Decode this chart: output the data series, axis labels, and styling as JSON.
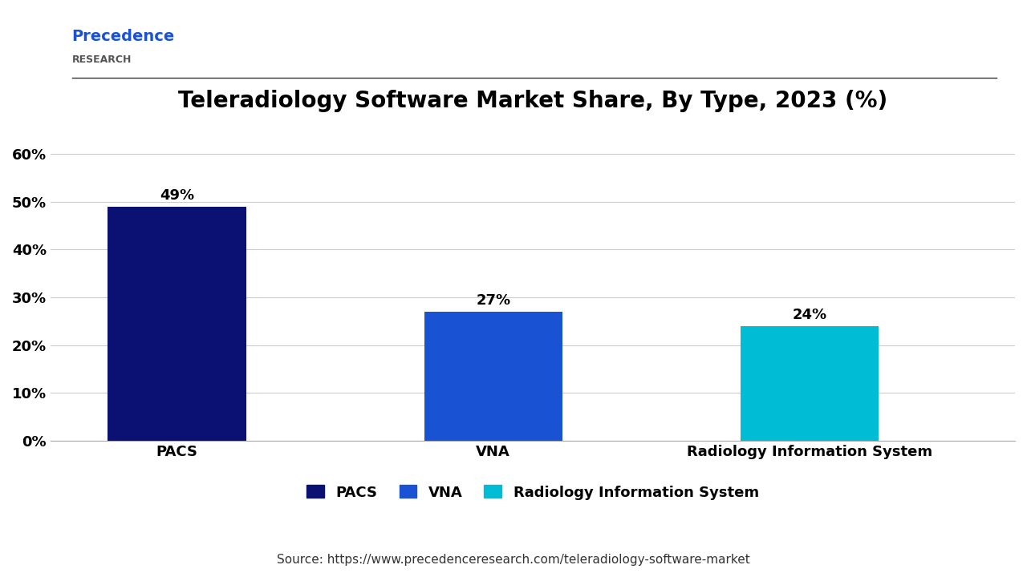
{
  "title": "Teleradiology Software Market Share, By Type, 2023 (%)",
  "categories": [
    "PACS",
    "VNA",
    "Radiology Information System"
  ],
  "values": [
    49,
    27,
    24
  ],
  "bar_colors": [
    "#0a1172",
    "#1a52d4",
    "#00bcd4"
  ],
  "labels": [
    "49%",
    "27%",
    "24%"
  ],
  "ylim": [
    0,
    65
  ],
  "yticks": [
    0,
    10,
    20,
    30,
    40,
    50,
    60
  ],
  "ytick_labels": [
    "0%",
    "10%",
    "20%",
    "30%",
    "40%",
    "50%",
    "60%"
  ],
  "legend_labels": [
    "PACS",
    "VNA",
    "Radiology Information System"
  ],
  "source_text": "Source: https://www.precedenceresearch.com/teleradiology-software-market",
  "background_color": "#ffffff",
  "title_fontsize": 20,
  "tick_fontsize": 13,
  "label_fontsize": 13,
  "legend_fontsize": 13,
  "source_fontsize": 11,
  "bar_width": 0.875,
  "grid_color": "#cccccc",
  "logo_text_1": "Precedence",
  "logo_text_2": "RESEARCH"
}
